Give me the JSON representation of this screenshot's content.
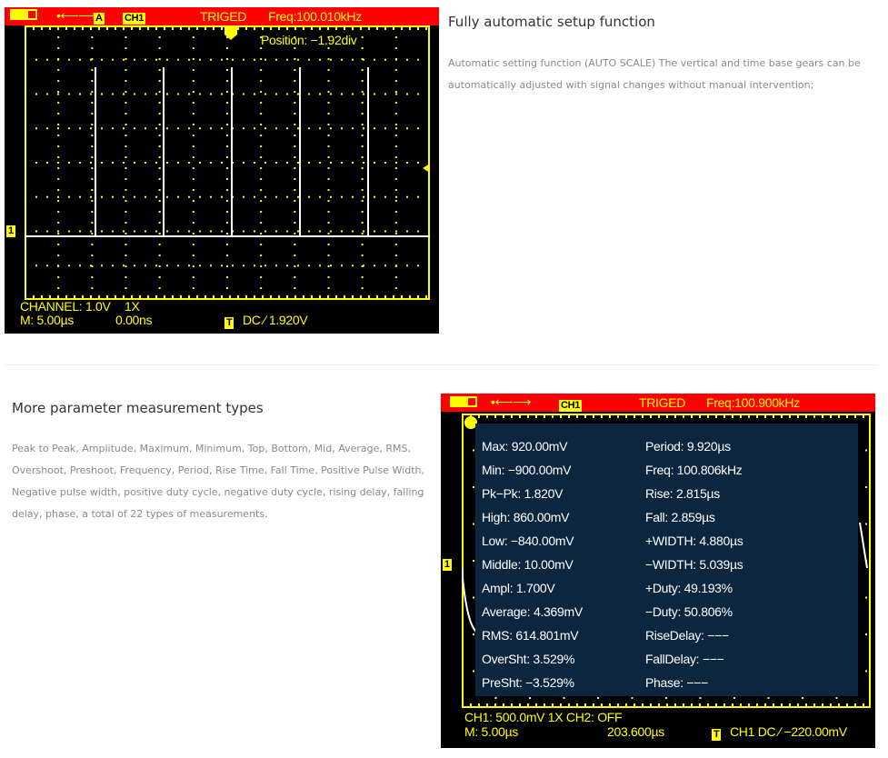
{
  "section1": {
    "title": "Fully automatic setup function",
    "description": "Automatic setting function (AUTO SCALE) The vertical and time base gears can be automatically adjusted with signal changes without manual intervention;",
    "scope": {
      "status": "TRIGED",
      "freq": "Freq:100.010kHz",
      "channel_badge": "CH1",
      "mode_badge": "A",
      "position": "Position: −1.92div",
      "channel_line": "CHANNEL: 1.0V",
      "probe": "1X",
      "timebase": "M: 5.00µs",
      "offset": "0.00ns",
      "trigger_badge": "T",
      "trigger_info": "DC ∕ 1.920V",
      "channel_marker": "1"
    }
  },
  "section2": {
    "title": "More parameter measurement types",
    "description": "Peak to Peak, Amplitude, Maximum, Minimum, Top, Bottom, Mid, Average, RMS, Overshoot, Preshoot, Frequency, Period, Rise Time, Fall Time, Positive Pulse Width, Negative pulse width, positive duty cycle, negative duty cycle, rising delay, falling delay, phase, a total of 22 types of measurements.",
    "scope": {
      "status": "TRIGED",
      "freq": "Freq:100.900kHz",
      "channel_badge": "CH1",
      "channel_line": "CH1: 500.0mV 1X  CH2: OFF",
      "timebase": "M: 5.00µs",
      "offset": "203.600µs",
      "trigger_badge": "T",
      "trigger_info": "CH1 DC ∕ −220.00mV",
      "channel_marker": "1",
      "measurements_left": [
        "Max: 920.00mV",
        "Min: −900.00mV",
        "Pk−Pk: 1.820V",
        "High: 860.00mV",
        "Low: −840.00mV",
        "Middle: 10.00mV",
        "Ampl: 1.700V",
        "Average: 4.369mV",
        "RMS: 614.801mV",
        "OverSht: 3.529%",
        "PreSht: −3.529%"
      ],
      "measurements_right": [
        "Period: 9.920µs",
        "Freq: 100.806kHz",
        "Rise: 2.815µs",
        "Fall: 2.859µs",
        "+WIDTH: 4.880µs",
        "−WIDTH: 5.039µs",
        "+Duty: 49.193%",
        "−Duty: 50.806%",
        "RiseDelay: −−−",
        "FallDelay: −−−",
        "Phase: −−−"
      ]
    }
  },
  "colors": {
    "bar": "#ff0000",
    "grid": "#ffff00",
    "overlay": "#0d2640",
    "trace": "#ffffff"
  }
}
